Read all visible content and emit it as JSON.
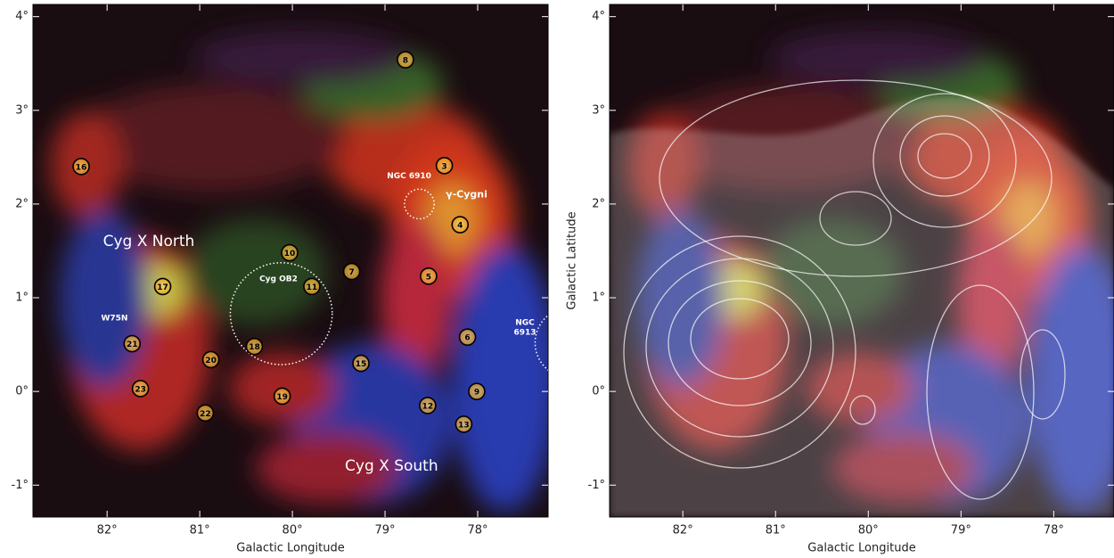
{
  "chart_data": [
    {
      "type": "image",
      "xlabel": "Galactic Longitude",
      "xlim": [
        82.8,
        77.24
      ],
      "ylim": [
        -1.34,
        4.13
      ],
      "xticks": [
        {
          "value": 82,
          "label": "82°"
        },
        {
          "value": 81,
          "label": "81°"
        },
        {
          "value": 80,
          "label": "80°"
        },
        {
          "value": 79,
          "label": "79°"
        },
        {
          "value": 78,
          "label": "78°"
        }
      ],
      "yticks": [
        {
          "value": -1,
          "label": "-1°"
        },
        {
          "value": 0,
          "label": "0°"
        },
        {
          "value": 1,
          "label": "1°"
        },
        {
          "value": 2,
          "label": "2°"
        },
        {
          "value": 3,
          "label": "3°"
        },
        {
          "value": 4,
          "label": "4°"
        }
      ],
      "sources": [
        {
          "label": "8",
          "l": 78.78,
          "b": 3.54
        },
        {
          "label": "3",
          "l": 78.36,
          "b": 2.41
        },
        {
          "label": "16",
          "l": 82.28,
          "b": 2.4
        },
        {
          "label": "4",
          "l": 78.19,
          "b": 1.78
        },
        {
          "label": "10",
          "l": 80.03,
          "b": 1.48
        },
        {
          "label": "7",
          "l": 79.36,
          "b": 1.28
        },
        {
          "label": "5",
          "l": 78.53,
          "b": 1.23
        },
        {
          "label": "11",
          "l": 79.79,
          "b": 1.12
        },
        {
          "label": "17",
          "l": 81.4,
          "b": 1.12
        },
        {
          "label": "6",
          "l": 78.11,
          "b": 0.58
        },
        {
          "label": "21",
          "l": 81.73,
          "b": 0.51
        },
        {
          "label": "18",
          "l": 80.41,
          "b": 0.48
        },
        {
          "label": "20",
          "l": 80.88,
          "b": 0.34
        },
        {
          "label": "15",
          "l": 79.26,
          "b": 0.3
        },
        {
          "label": "23",
          "l": 81.64,
          "b": 0.03
        },
        {
          "label": "9",
          "l": 78.01,
          "b": 0.0
        },
        {
          "label": "19",
          "l": 80.11,
          "b": -0.05
        },
        {
          "label": "12",
          "l": 78.54,
          "b": -0.15
        },
        {
          "label": "22",
          "l": 80.94,
          "b": -0.23
        },
        {
          "label": "13",
          "l": 78.15,
          "b": -0.35
        }
      ],
      "regions": [
        {
          "l": 78.63,
          "b": 2.0,
          "r": 0.16
        },
        {
          "l": 80.12,
          "b": 0.83,
          "r": 0.55
        },
        {
          "l": 77.0,
          "b": 0.52,
          "r": 0.38
        }
      ],
      "annotations": [
        {
          "lines": [
            "Cyg X North"
          ],
          "l": 81.55,
          "b": 1.6,
          "size": "large"
        },
        {
          "lines": [
            "Cyg X South"
          ],
          "l": 78.93,
          "b": -0.8,
          "size": "large"
        },
        {
          "lines": [
            "NGC 6910"
          ],
          "l": 78.74,
          "b": 2.3,
          "size": "small"
        },
        {
          "lines": [
            "γ-Cygni"
          ],
          "l": 78.12,
          "b": 2.1,
          "size": "medium"
        },
        {
          "lines": [
            "Cyg OB2"
          ],
          "l": 80.15,
          "b": 1.2,
          "size": "small"
        },
        {
          "lines": [
            "W75N"
          ],
          "l": 81.92,
          "b": 0.78,
          "size": "small"
        },
        {
          "lines": [
            "NGC",
            "6913"
          ],
          "l": 77.49,
          "b": 0.68,
          "size": "small"
        }
      ]
    },
    {
      "type": "image",
      "xlabel": "Galactic Longitude",
      "ylabel": "Galactic Latitude",
      "xlim": [
        82.79,
        77.35
      ],
      "ylim": [
        -1.34,
        4.13
      ],
      "xticks": [
        {
          "value": 82,
          "label": "82°"
        },
        {
          "value": 81,
          "label": "81°"
        },
        {
          "value": 80,
          "label": "80°"
        },
        {
          "value": 79,
          "label": "79°"
        },
        {
          "value": 78,
          "label": "78°"
        }
      ],
      "yticks": [
        {
          "value": -1,
          "label": "-1°"
        },
        {
          "value": 0,
          "label": "0°"
        },
        {
          "value": 1,
          "label": "1°"
        },
        {
          "value": 2,
          "label": "2°"
        },
        {
          "value": 3,
          "label": "3°"
        },
        {
          "value": 4,
          "label": "4°"
        }
      ]
    }
  ]
}
